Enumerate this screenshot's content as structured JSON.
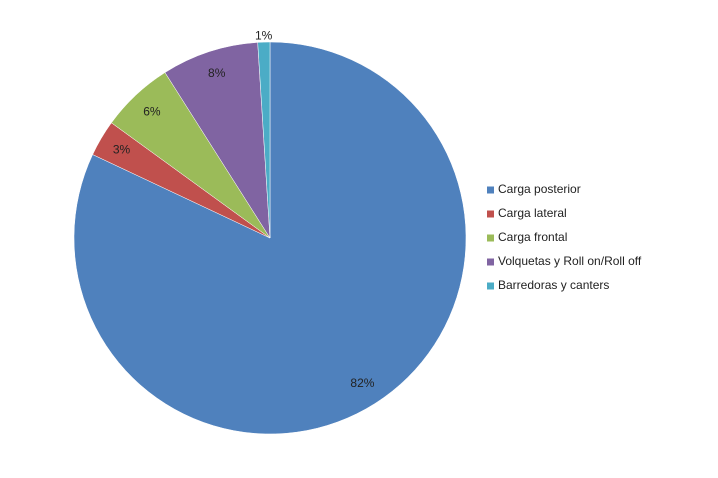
{
  "chart_data": {
    "type": "pie",
    "categories": [
      "Carga posterior",
      "Carga lateral",
      "Carga frontal",
      "Volquetas y Roll on/Roll off",
      "Barredoras y canters"
    ],
    "values": [
      82,
      3,
      6,
      8,
      1
    ],
    "value_labels": [
      "82%",
      "3%",
      "6%",
      "8%",
      "1%"
    ],
    "colors": [
      "#4f81bd",
      "#c0504d",
      "#9bbb59",
      "#8064a2",
      "#4bacc6"
    ],
    "legend": "right"
  }
}
